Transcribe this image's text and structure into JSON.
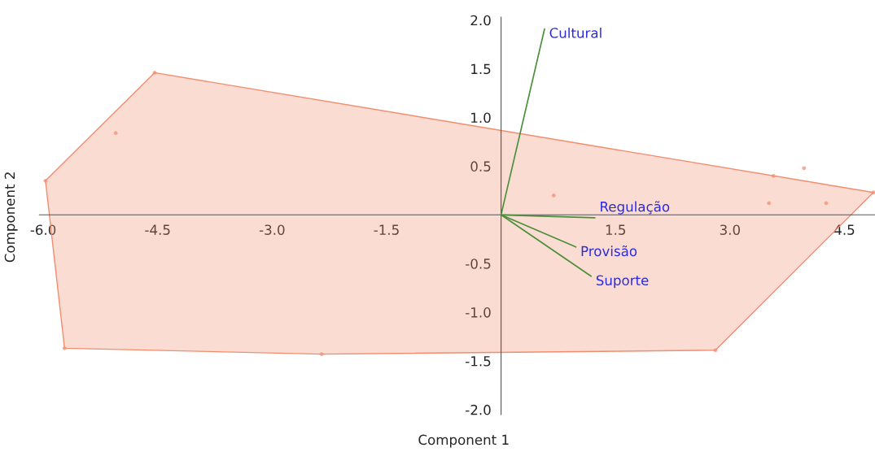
{
  "chart_data": {
    "type": "scatter",
    "xlabel": "Component 1",
    "ylabel": "Component 2",
    "xlim": [
      -6.05,
      4.9
    ],
    "ylim": [
      -2.05,
      2.03
    ],
    "xticks": [
      {
        "value": -6.0,
        "label": "-6.0"
      },
      {
        "value": -4.5,
        "label": "-4.5"
      },
      {
        "value": -3.0,
        "label": "-3.0"
      },
      {
        "value": -1.5,
        "label": "-1.5"
      },
      {
        "value": 1.5,
        "label": "1.5"
      },
      {
        "value": 3.0,
        "label": "3.0"
      },
      {
        "value": 4.5,
        "label": "4.5"
      }
    ],
    "yticks": [
      {
        "value": -2.0,
        "label": "-2.0"
      },
      {
        "value": -1.5,
        "label": "-1.5"
      },
      {
        "value": -1.0,
        "label": "-1.0"
      },
      {
        "value": -0.5,
        "label": "-0.5"
      },
      {
        "value": 0.5,
        "label": "0.5"
      },
      {
        "value": 1.0,
        "label": "1.0"
      },
      {
        "value": 1.5,
        "label": "1.5"
      },
      {
        "value": 2.0,
        "label": "2.0"
      }
    ],
    "grid": false,
    "legend": false,
    "series": [
      {
        "type": "area",
        "color": "#f28c6e",
        "x": [
          -5.97,
          -4.54,
          4.88,
          2.81,
          -2.35,
          -5.72,
          -5.97
        ],
        "values": [
          0.35,
          1.46,
          0.23,
          -1.39,
          -1.43,
          -1.37,
          0.35
        ]
      },
      {
        "color": "#f28c6e",
        "marker": "circle",
        "x": [
          -5.97,
          -4.54,
          -5.05,
          -5.72,
          -2.35,
          2.81,
          4.88,
          3.57,
          3.97,
          0.69,
          3.51,
          4.26
        ],
        "values": [
          0.35,
          1.46,
          0.84,
          -1.37,
          -1.43,
          -1.39,
          0.23,
          0.4,
          0.48,
          0.2,
          0.12,
          0.12
        ]
      },
      {
        "type": "line",
        "name": "Cultural",
        "color": "#4a8f3a",
        "x": [
          0,
          0.57
        ],
        "values": [
          0,
          1.91
        ]
      },
      {
        "type": "line",
        "name": "Regulação",
        "color": "#4a8f3a",
        "x": [
          0,
          1.23
        ],
        "values": [
          0,
          -0.03
        ]
      },
      {
        "type": "line",
        "name": "Provisão",
        "color": "#4a8f3a",
        "x": [
          0,
          0.98
        ],
        "values": [
          0,
          -0.33
        ]
      },
      {
        "type": "line",
        "name": "Suporte",
        "color": "#4a8f3a",
        "x": [
          0,
          1.18
        ],
        "values": [
          0,
          -0.63
        ]
      }
    ]
  }
}
